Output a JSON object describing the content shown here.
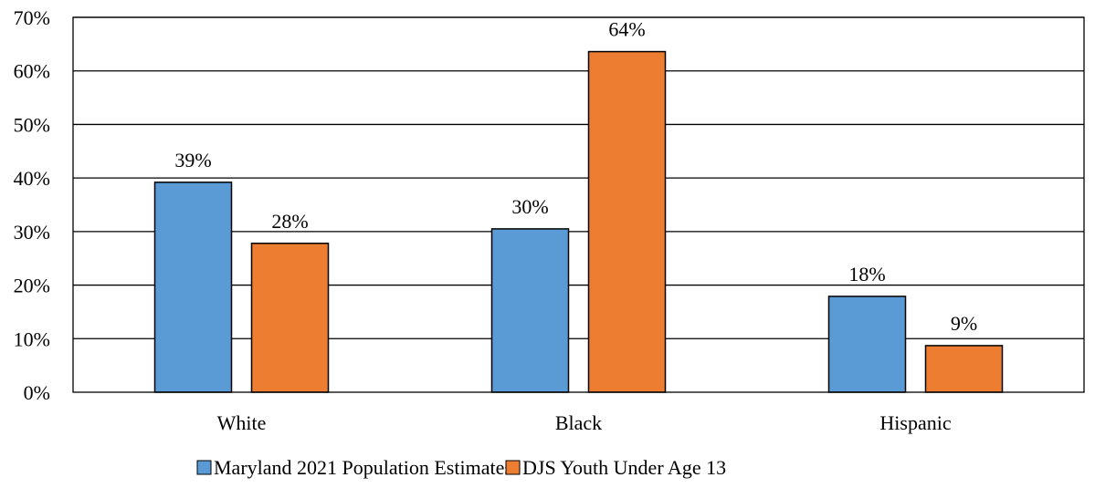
{
  "chart_data": {
    "type": "bar",
    "categories": [
      "White",
      "Black",
      "Hispanic"
    ],
    "series": [
      {
        "name": "Maryland 2021 Population Estimates",
        "color": "#5b9bd5",
        "values": [
          39.2,
          30.5,
          17.9
        ],
        "labels": [
          "39%",
          "30%",
          "18%"
        ]
      },
      {
        "name": "DJS Youth Under Age 13",
        "color": "#ed7d31",
        "values": [
          27.8,
          63.6,
          8.7
        ],
        "labels": [
          "28%",
          "64%",
          "9%"
        ]
      }
    ],
    "ylim": [
      0,
      70
    ],
    "yticks": [
      0,
      10,
      20,
      30,
      40,
      50,
      60,
      70
    ],
    "ytick_labels": [
      "0%",
      "10%",
      "20%",
      "30%",
      "40%",
      "50%",
      "60%",
      "70%"
    ],
    "grid": true,
    "legend_position": "bottom"
  }
}
